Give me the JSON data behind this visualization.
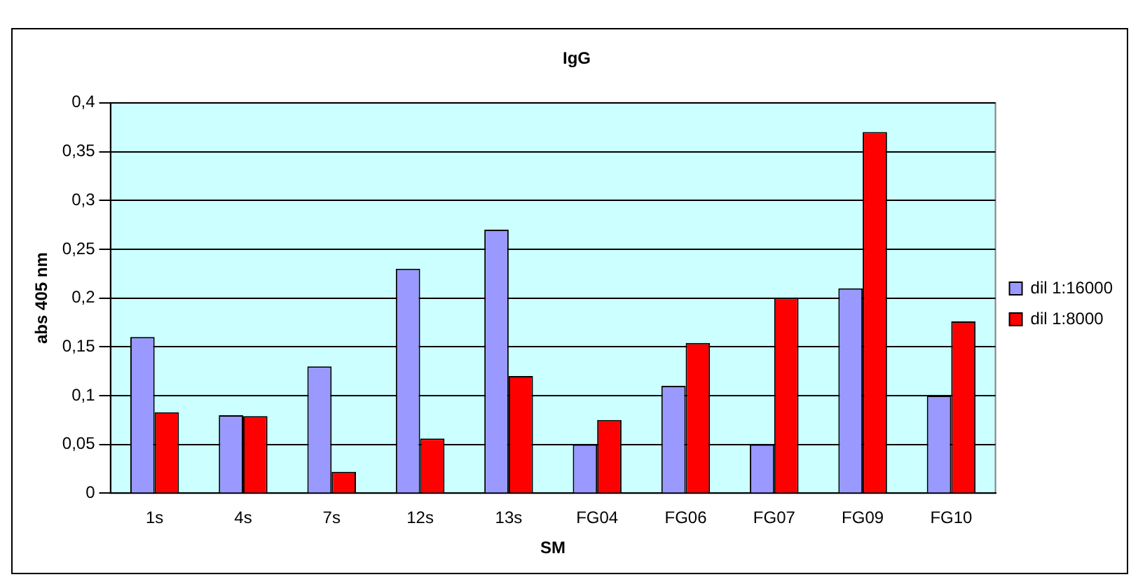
{
  "chart_data": {
    "type": "bar",
    "title": "IgG",
    "xlabel": "SM",
    "ylabel": "abs 405 nm",
    "categories": [
      "1s",
      "4s",
      "7s",
      "12s",
      "13s",
      "FG04",
      "FG06",
      "FG07",
      "FG09",
      "FG10"
    ],
    "series": [
      {
        "name": "dil 1:16000",
        "color": "#9999ff",
        "values": [
          0.16,
          0.08,
          0.13,
          0.23,
          0.27,
          0.05,
          0.11,
          0.05,
          0.21,
          0.1
        ]
      },
      {
        "name": "dil 1:8000",
        "color": "#ff0000",
        "values": [
          0.083,
          0.079,
          0.022,
          0.056,
          0.12,
          0.075,
          0.154,
          0.2,
          0.37,
          0.176
        ]
      }
    ],
    "ylim": [
      0,
      0.4
    ],
    "yticks": [
      0,
      {
        "value": 0.05,
        "label": "0,05"
      },
      {
        "value": 0.1,
        "label": "0,1"
      },
      {
        "value": 0.15,
        "label": "0,15"
      },
      {
        "value": 0.2,
        "label": "0,2"
      },
      {
        "value": 0.25,
        "label": "0,25"
      },
      {
        "value": 0.3,
        "label": "0,3"
      },
      {
        "value": 0.35,
        "label": "0,35"
      },
      {
        "value": 0.4,
        "label": "0,4"
      }
    ],
    "grid": "y",
    "legend": "right"
  }
}
